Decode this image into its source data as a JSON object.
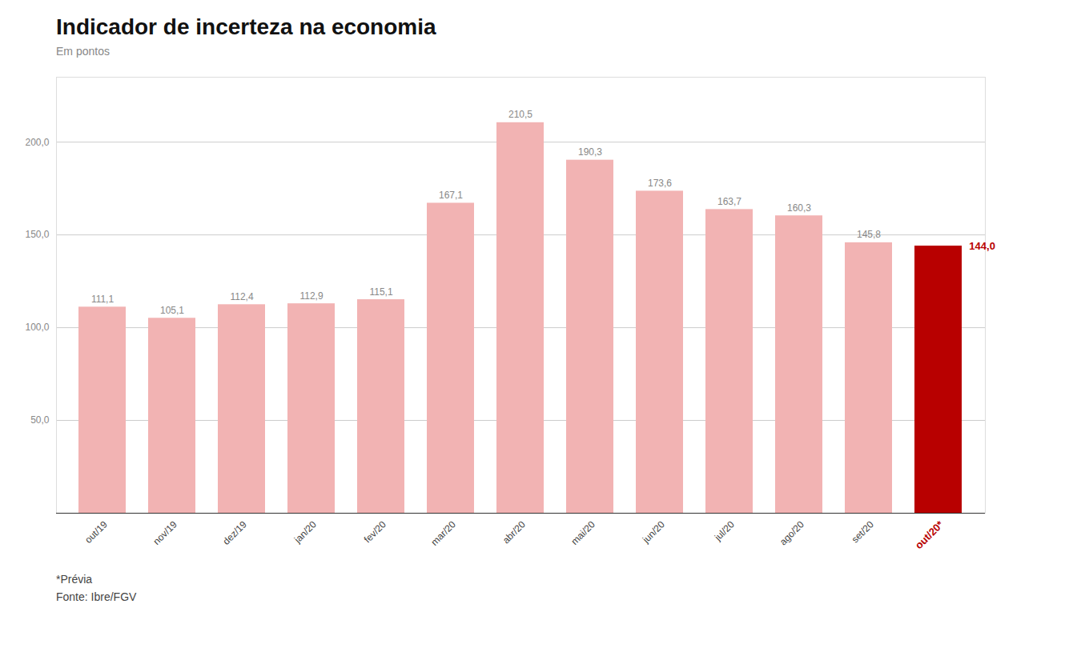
{
  "chart_data": {
    "type": "bar",
    "title": "Indicador de incerteza na economia",
    "subtitle": "Em pontos",
    "footnote": "*Prévia",
    "source": "Fonte: Ibre/FGV",
    "categories": [
      "out/19",
      "nov/19",
      "dez/19",
      "jan/20",
      "fev/20",
      "mar/20",
      "abr/20",
      "mai/20",
      "jun/20",
      "jul/20",
      "ago/20",
      "set/20",
      "out/20*"
    ],
    "values": [
      111.1,
      105.1,
      112.4,
      112.9,
      115.1,
      167.1,
      210.5,
      190.3,
      173.6,
      163.7,
      160.3,
      145.8,
      144.0
    ],
    "value_labels": [
      "111,1",
      "105,1",
      "112,4",
      "112,9",
      "115,1",
      "167,1",
      "210,5",
      "190,3",
      "173,6",
      "163,7",
      "160,3",
      "145,8",
      "144,0"
    ],
    "data_labels": true,
    "colors": [
      "#f2b3b3",
      "#f2b3b3",
      "#f2b3b3",
      "#f2b3b3",
      "#f2b3b3",
      "#f2b3b3",
      "#f2b3b3",
      "#f2b3b3",
      "#f2b3b3",
      "#f2b3b3",
      "#f2b3b3",
      "#f2b3b3",
      "#b80000"
    ],
    "ylim": [
      0,
      235
    ],
    "yticks": [
      {
        "value": 50,
        "label": "50,0"
      },
      {
        "value": 100,
        "label": "100,0"
      },
      {
        "value": 150,
        "label": "150,0"
      },
      {
        "value": 200,
        "label": "200,0"
      }
    ],
    "grid": true
  }
}
